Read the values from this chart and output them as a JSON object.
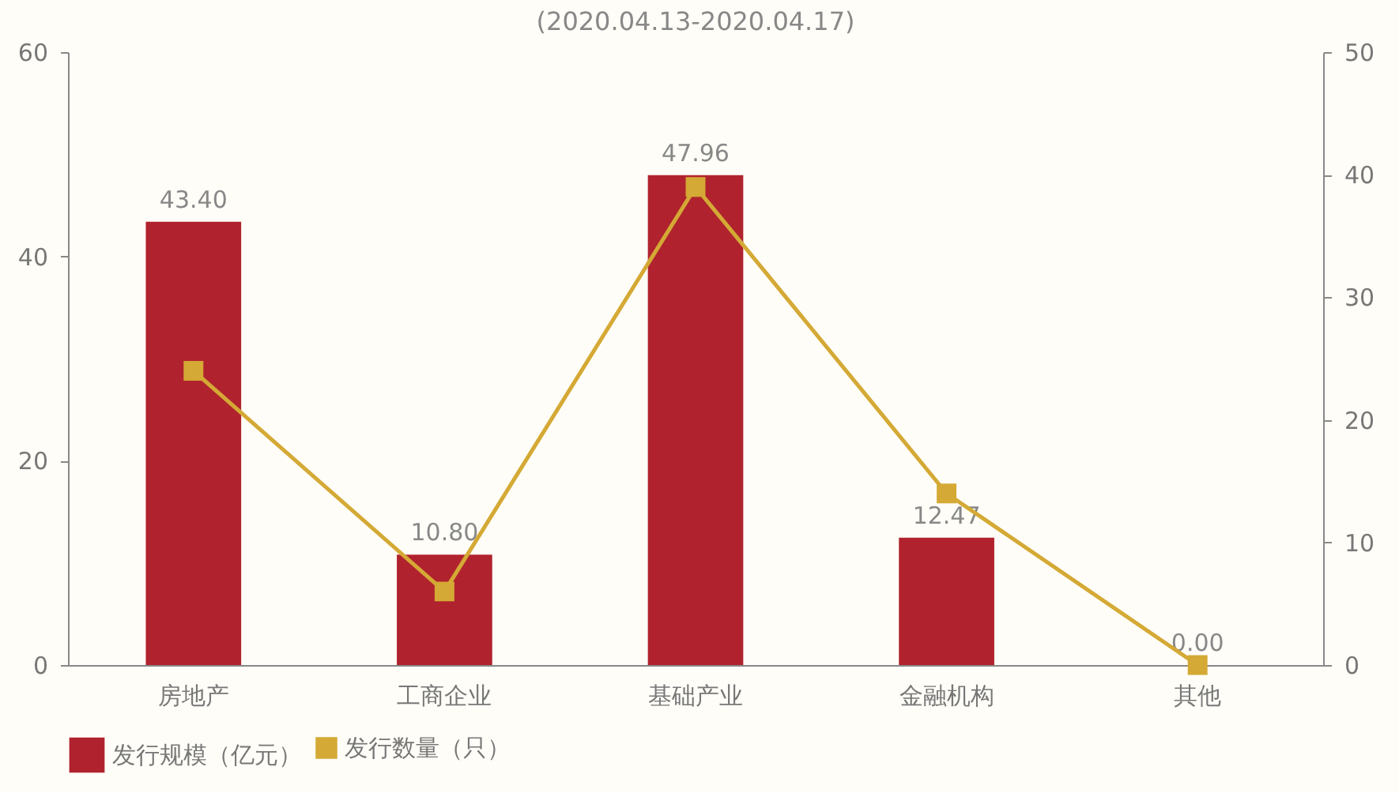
{
  "chart_data": {
    "type": "bar",
    "title": "(2020.04.13-2020.04.17)",
    "categories": [
      "房地产",
      "工商企业",
      "基础产业",
      "金融机构",
      "其他"
    ],
    "series": [
      {
        "name": "发行规模（亿元）",
        "color": "#b0232e",
        "values": [
          43.4,
          10.8,
          47.96,
          12.47,
          0.0
        ],
        "value_labels": [
          "43.40",
          "10.80",
          "47.96",
          "12.47",
          "0.00"
        ]
      },
      {
        "name": "发行数量（只）",
        "type": "line",
        "axis": "y2",
        "color": "#d4a935",
        "values": [
          24,
          6,
          39,
          14,
          0
        ]
      }
    ],
    "ylim": [
      0,
      60
    ],
    "yticks": [
      0,
      20,
      40,
      60
    ],
    "y2lim": [
      0,
      50
    ],
    "y2ticks": [
      0,
      10,
      20,
      30,
      40,
      50
    ],
    "legend": "bottom",
    "marker": "square"
  }
}
